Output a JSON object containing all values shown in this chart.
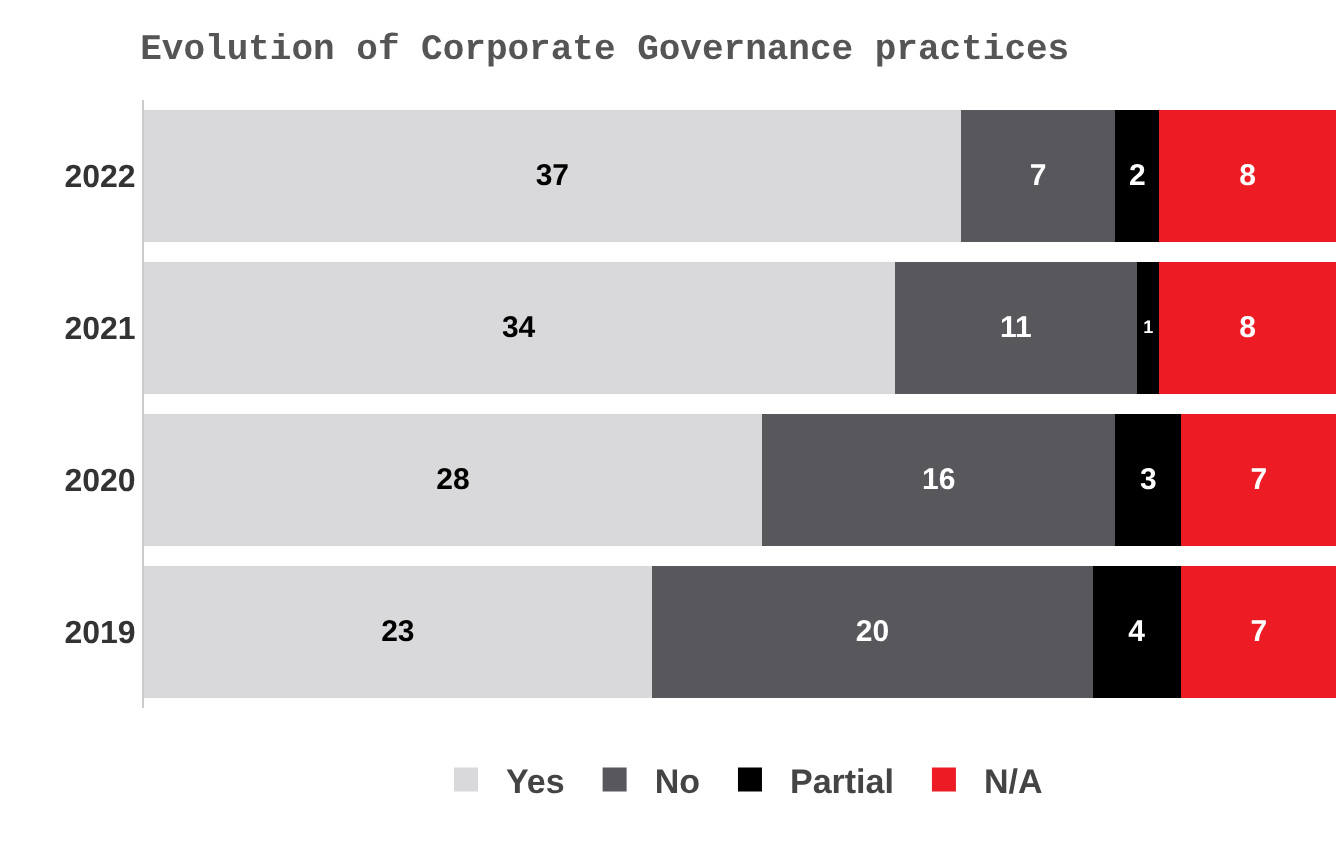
{
  "chart_data": {
    "type": "bar",
    "orientation": "horizontal",
    "stacked": true,
    "title": "Evolution of Corporate Governance practices",
    "categories": [
      "2022",
      "2021",
      "2020",
      "2019"
    ],
    "series": [
      {
        "name": "Yes",
        "color": "#d9d9db",
        "values": [
          37,
          34,
          28,
          23
        ]
      },
      {
        "name": "No",
        "color": "#58585c",
        "values": [
          7,
          11,
          16,
          20
        ]
      },
      {
        "name": "Partial",
        "color": "#000000",
        "values": [
          2,
          1,
          3,
          4
        ]
      },
      {
        "name": "N/A",
        "color": "#ed1c24",
        "values": [
          8,
          8,
          7,
          7
        ]
      }
    ],
    "xlim": [
      0,
      54
    ],
    "data_labels": true,
    "legend": "bottom",
    "tick_labels": "y"
  }
}
